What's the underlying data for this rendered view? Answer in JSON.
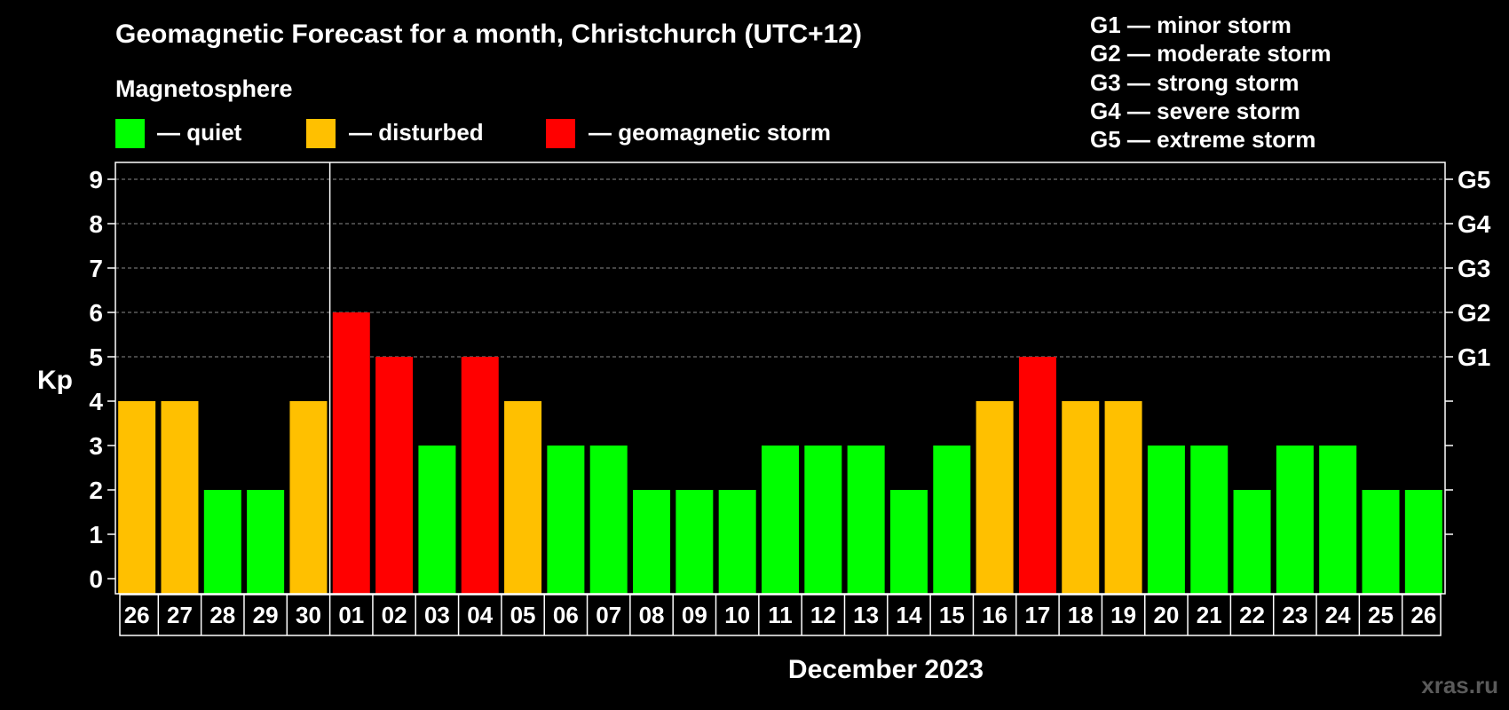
{
  "colors": {
    "quiet": "#00ff00",
    "disturbed": "#ffc000",
    "storm": "#ff0000",
    "background": "#000000",
    "foreground": "#ffffff"
  },
  "header": {
    "title": "Geomagnetic Forecast for a month, Christchurch (UTC+12)",
    "legend_title": "Magnetosphere",
    "legend": [
      {
        "key": "quiet",
        "label": "— quiet"
      },
      {
        "key": "disturbed",
        "label": "— disturbed"
      },
      {
        "key": "storm",
        "label": "— geomagnetic storm"
      }
    ]
  },
  "storm_scale": [
    "G1 — minor storm",
    "G2 — moderate storm",
    "G3 — strong storm",
    "G4 — severe storm",
    "G5 — extreme storm"
  ],
  "watermark": "xras.ru",
  "chart_data": {
    "type": "bar",
    "title": "Geomagnetic Forecast for a month, Christchurch (UTC+12)",
    "xlabel": "December 2023",
    "ylabel": "Kp",
    "ylim": [
      0,
      9
    ],
    "yticks": [
      0,
      1,
      2,
      3,
      4,
      5,
      6,
      7,
      8,
      9
    ],
    "right_axis": [
      {
        "kp": 5,
        "label": "G1"
      },
      {
        "kp": 6,
        "label": "G2"
      },
      {
        "kp": 7,
        "label": "G3"
      },
      {
        "kp": 8,
        "label": "G4"
      },
      {
        "kp": 9,
        "label": "G5"
      }
    ],
    "month_divider_after_index": 4,
    "categories": [
      "26",
      "27",
      "28",
      "29",
      "30",
      "01",
      "02",
      "03",
      "04",
      "05",
      "06",
      "07",
      "08",
      "09",
      "10",
      "11",
      "12",
      "13",
      "14",
      "15",
      "16",
      "17",
      "18",
      "19",
      "20",
      "21",
      "22",
      "23",
      "24",
      "25",
      "26"
    ],
    "values": [
      4,
      4,
      2,
      2,
      4,
      6,
      5,
      3,
      5,
      4,
      3,
      3,
      2,
      2,
      2,
      3,
      3,
      3,
      2,
      3,
      4,
      5,
      4,
      4,
      3,
      3,
      2,
      3,
      3,
      2,
      2
    ],
    "status": [
      "disturbed",
      "disturbed",
      "quiet",
      "quiet",
      "disturbed",
      "storm",
      "storm",
      "quiet",
      "storm",
      "disturbed",
      "quiet",
      "quiet",
      "quiet",
      "quiet",
      "quiet",
      "quiet",
      "quiet",
      "quiet",
      "quiet",
      "quiet",
      "disturbed",
      "storm",
      "disturbed",
      "disturbed",
      "quiet",
      "quiet",
      "quiet",
      "quiet",
      "quiet",
      "quiet",
      "quiet"
    ],
    "legend": [
      "quiet",
      "disturbed",
      "geomagnetic storm"
    ]
  }
}
